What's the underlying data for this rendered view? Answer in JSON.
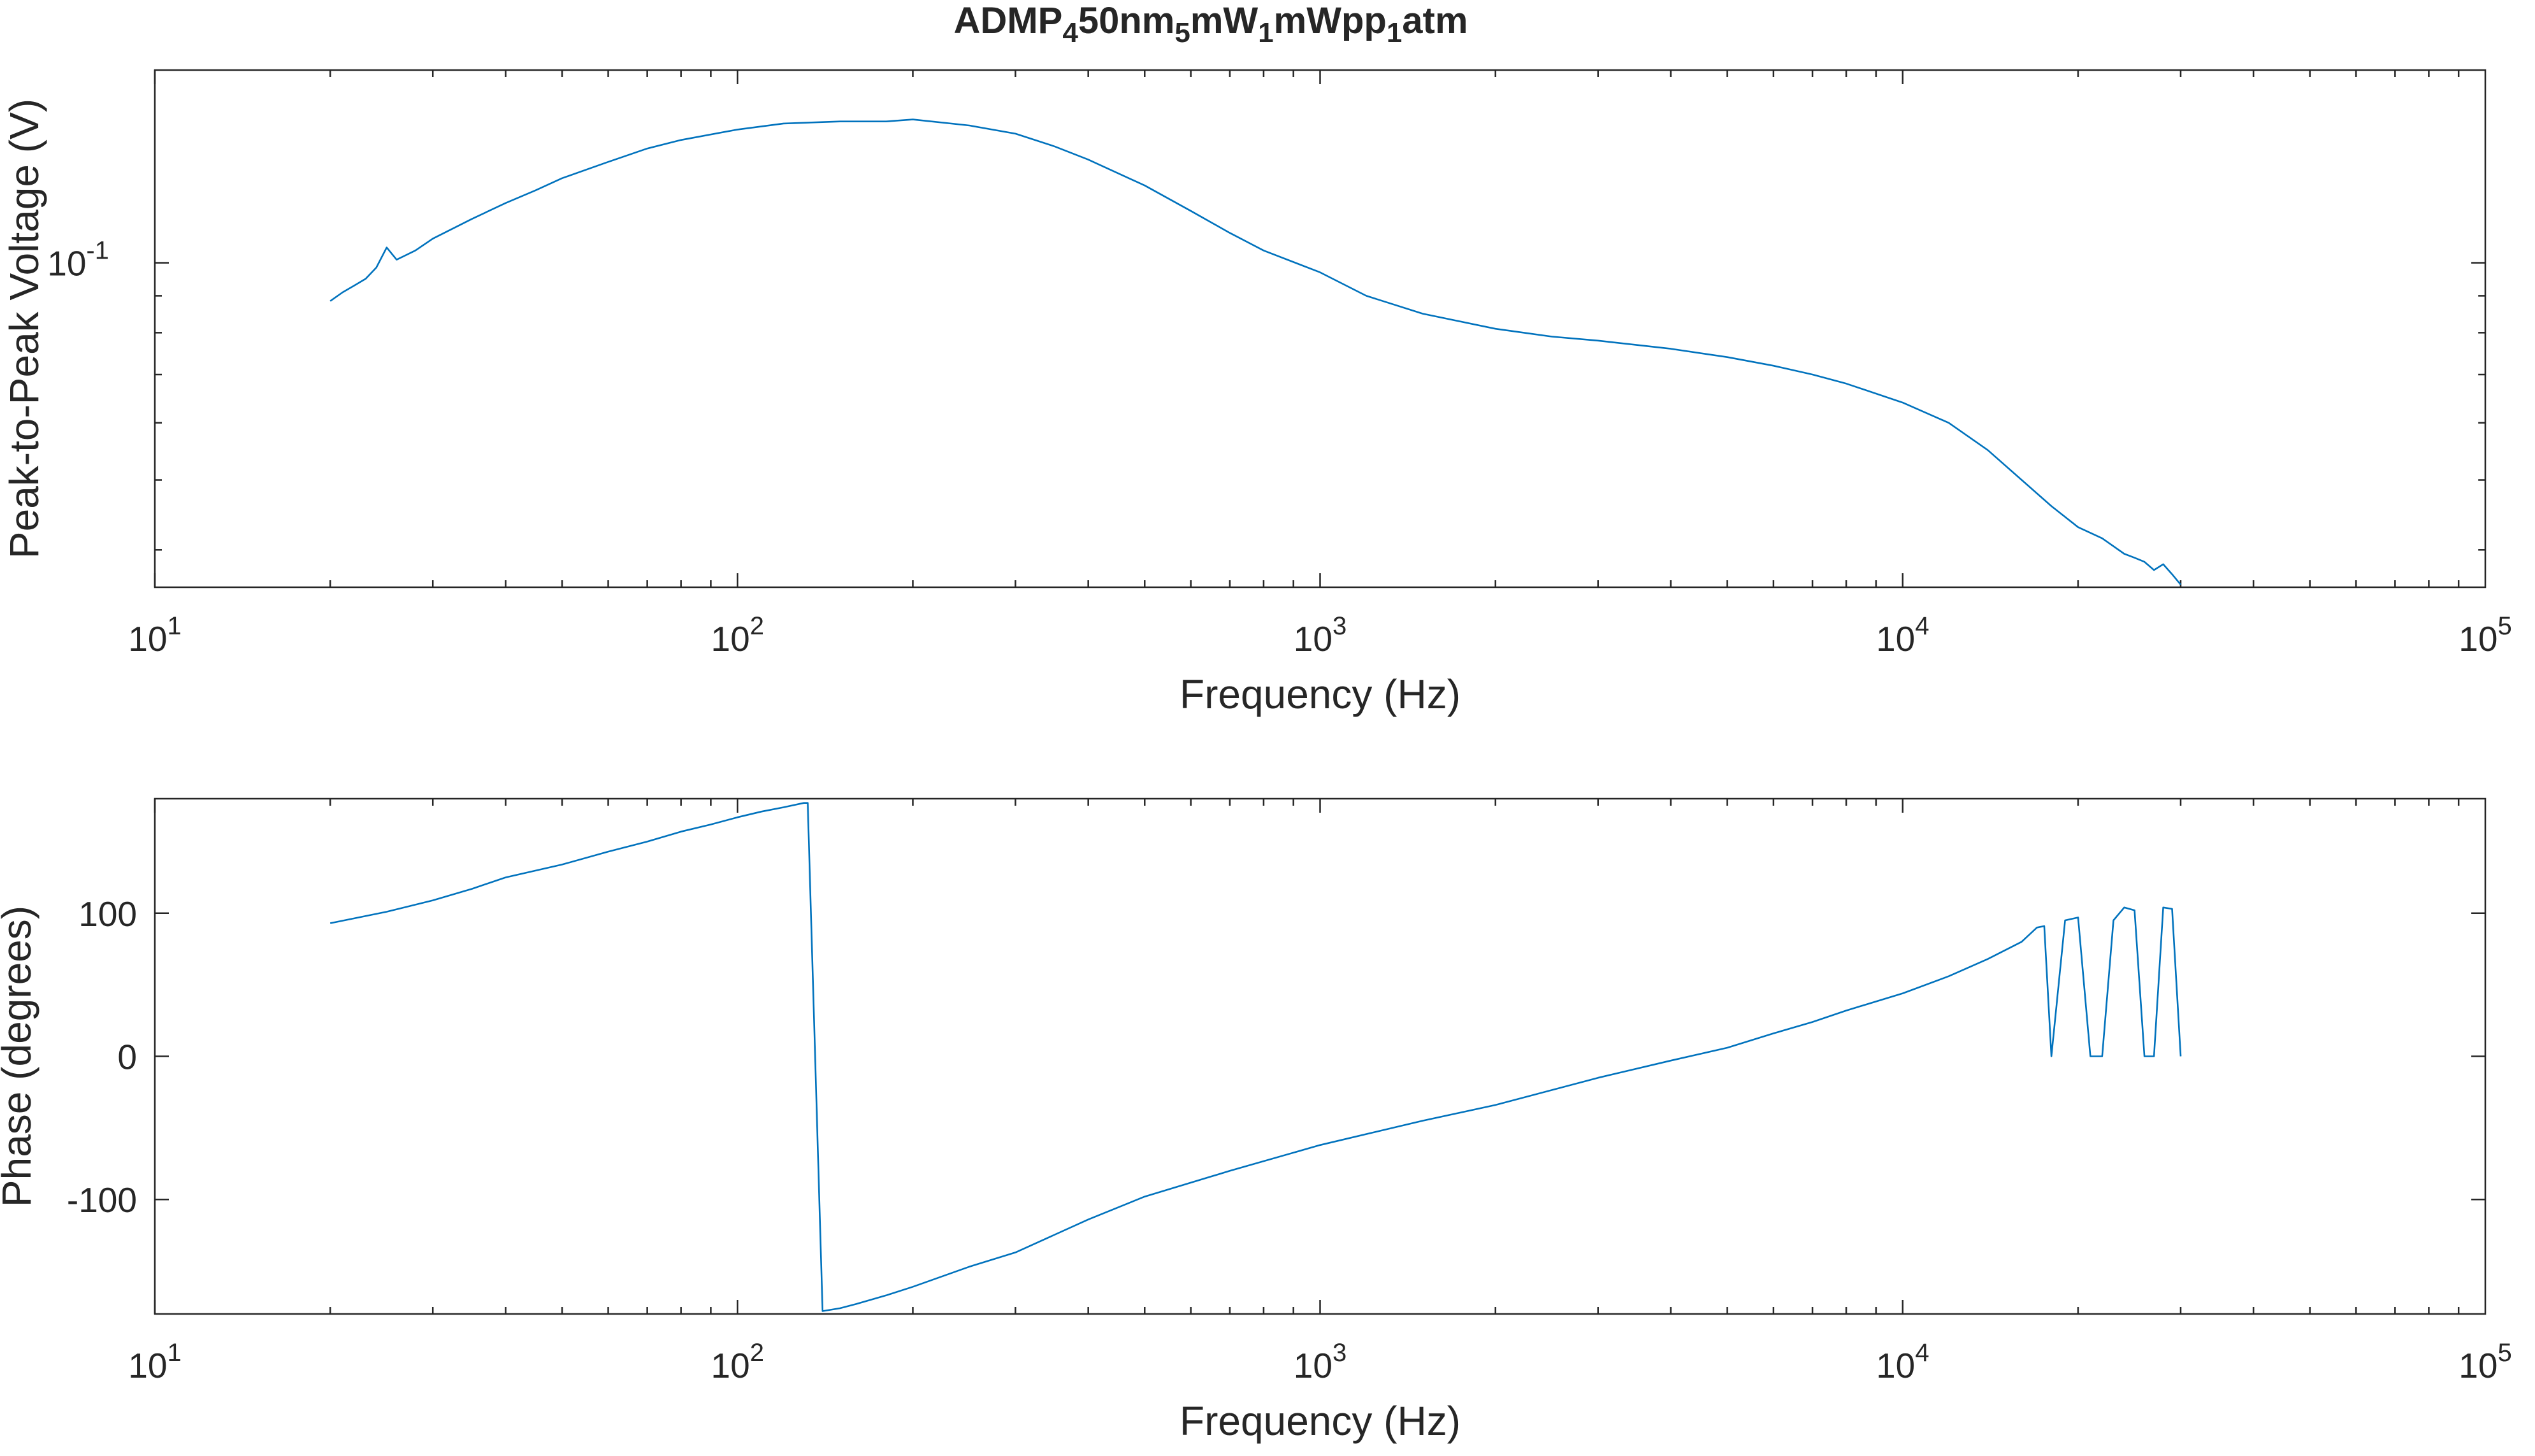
{
  "figure": {
    "title": "ADMP_4 50nm_5 mW_1 mWpp_1 atm",
    "title_parts": [
      {
        "text": "ADMP",
        "sub": false
      },
      {
        "text": "4",
        "sub": true
      },
      {
        "text": "50nm",
        "sub": false
      },
      {
        "text": "5",
        "sub": true
      },
      {
        "text": "mW",
        "sub": false
      },
      {
        "text": "1",
        "sub": true
      },
      {
        "text": "mWpp",
        "sub": false
      },
      {
        "text": "1",
        "sub": true
      },
      {
        "text": "atm",
        "sub": false
      }
    ],
    "line_color": "#0072BD"
  },
  "chart_data": [
    {
      "type": "line",
      "xlabel": "Frequency (Hz)",
      "ylabel": "Peak-to-Peak Voltage (V)",
      "xscale": "log",
      "yscale": "log",
      "xlim": [
        10,
        100000
      ],
      "ylim": [
        0.0355,
        0.185
      ],
      "xticks": [
        {
          "value": 10,
          "base": "10",
          "exp": "1"
        },
        {
          "value": 100,
          "base": "10",
          "exp": "2"
        },
        {
          "value": 1000,
          "base": "10",
          "exp": "3"
        },
        {
          "value": 10000,
          "base": "10",
          "exp": "4"
        },
        {
          "value": 100000,
          "base": "10",
          "exp": "5"
        }
      ],
      "yticks": [
        {
          "value": 0.1,
          "base": "10",
          "exp": "-1"
        }
      ],
      "grid": false,
      "series": [
        {
          "x": [
            20,
            21,
            22,
            23,
            24,
            25,
            26,
            28,
            30,
            35,
            40,
            45,
            50,
            60,
            70,
            80,
            100,
            120,
            150,
            180,
            200,
            250,
            300,
            350,
            400,
            500,
            600,
            700,
            800,
            1000,
            1200,
            1500,
            2000,
            2500,
            3000,
            4000,
            5000,
            6000,
            7000,
            8000,
            10000,
            12000,
            14000,
            16000,
            18000,
            20000,
            22000,
            24000,
            25000,
            26000,
            27000,
            28000,
            29000,
            30000
          ],
          "y": [
            0.0885,
            0.091,
            0.093,
            0.095,
            0.0985,
            0.105,
            0.101,
            0.104,
            0.108,
            0.115,
            0.121,
            0.126,
            0.131,
            0.138,
            0.144,
            0.148,
            0.153,
            0.156,
            0.157,
            0.157,
            0.158,
            0.155,
            0.151,
            0.145,
            0.139,
            0.128,
            0.118,
            0.11,
            0.104,
            0.097,
            0.09,
            0.085,
            0.081,
            0.079,
            0.078,
            0.076,
            0.074,
            0.072,
            0.07,
            0.068,
            0.064,
            0.06,
            0.055,
            0.05,
            0.046,
            0.043,
            0.0415,
            0.0395,
            0.039,
            0.0385,
            0.0375,
            0.0382,
            0.037,
            0.0358
          ]
        }
      ]
    },
    {
      "type": "line",
      "xlabel": "Frequency (Hz)",
      "ylabel": "Phase (degrees)",
      "xscale": "log",
      "yscale": "linear",
      "xlim": [
        10,
        100000
      ],
      "ylim": [
        -180,
        180
      ],
      "xticks": [
        {
          "value": 10,
          "base": "10",
          "exp": "1"
        },
        {
          "value": 100,
          "base": "10",
          "exp": "2"
        },
        {
          "value": 1000,
          "base": "10",
          "exp": "3"
        },
        {
          "value": 10000,
          "base": "10",
          "exp": "4"
        },
        {
          "value": 100000,
          "base": "10",
          "exp": "5"
        }
      ],
      "yticks": [
        {
          "value": -100,
          "label": "-100"
        },
        {
          "value": 0,
          "label": "0"
        },
        {
          "value": 100,
          "label": "100"
        }
      ],
      "grid": false,
      "series": [
        {
          "x": [
            20,
            25,
            30,
            35,
            40,
            50,
            60,
            70,
            80,
            90,
            100,
            110,
            120,
            130,
            132,
            140,
            150,
            160,
            180,
            200,
            250,
            300,
            400,
            500,
            700,
            1000,
            1500,
            2000,
            3000,
            4000,
            5000,
            6000,
            7000,
            8000,
            10000,
            12000,
            14000,
            16000,
            17000,
            17500,
            18000,
            19000,
            20000,
            21000,
            22000,
            23000,
            24000,
            25000,
            26000,
            27000,
            28000,
            29000,
            30000
          ],
          "y": [
            93,
            101,
            109,
            117,
            125,
            134,
            143,
            150,
            157,
            162,
            167,
            171,
            174,
            177,
            177,
            -178,
            -176,
            -173,
            -167,
            -161,
            -147,
            -137,
            -114,
            -98,
            -80,
            -62,
            -45,
            -34,
            -15,
            -3,
            6,
            16,
            24,
            32,
            44,
            56,
            68,
            80,
            90,
            91,
            0,
            95,
            97,
            0,
            0,
            95,
            104,
            102,
            0,
            0,
            104,
            103,
            0
          ]
        }
      ]
    }
  ]
}
